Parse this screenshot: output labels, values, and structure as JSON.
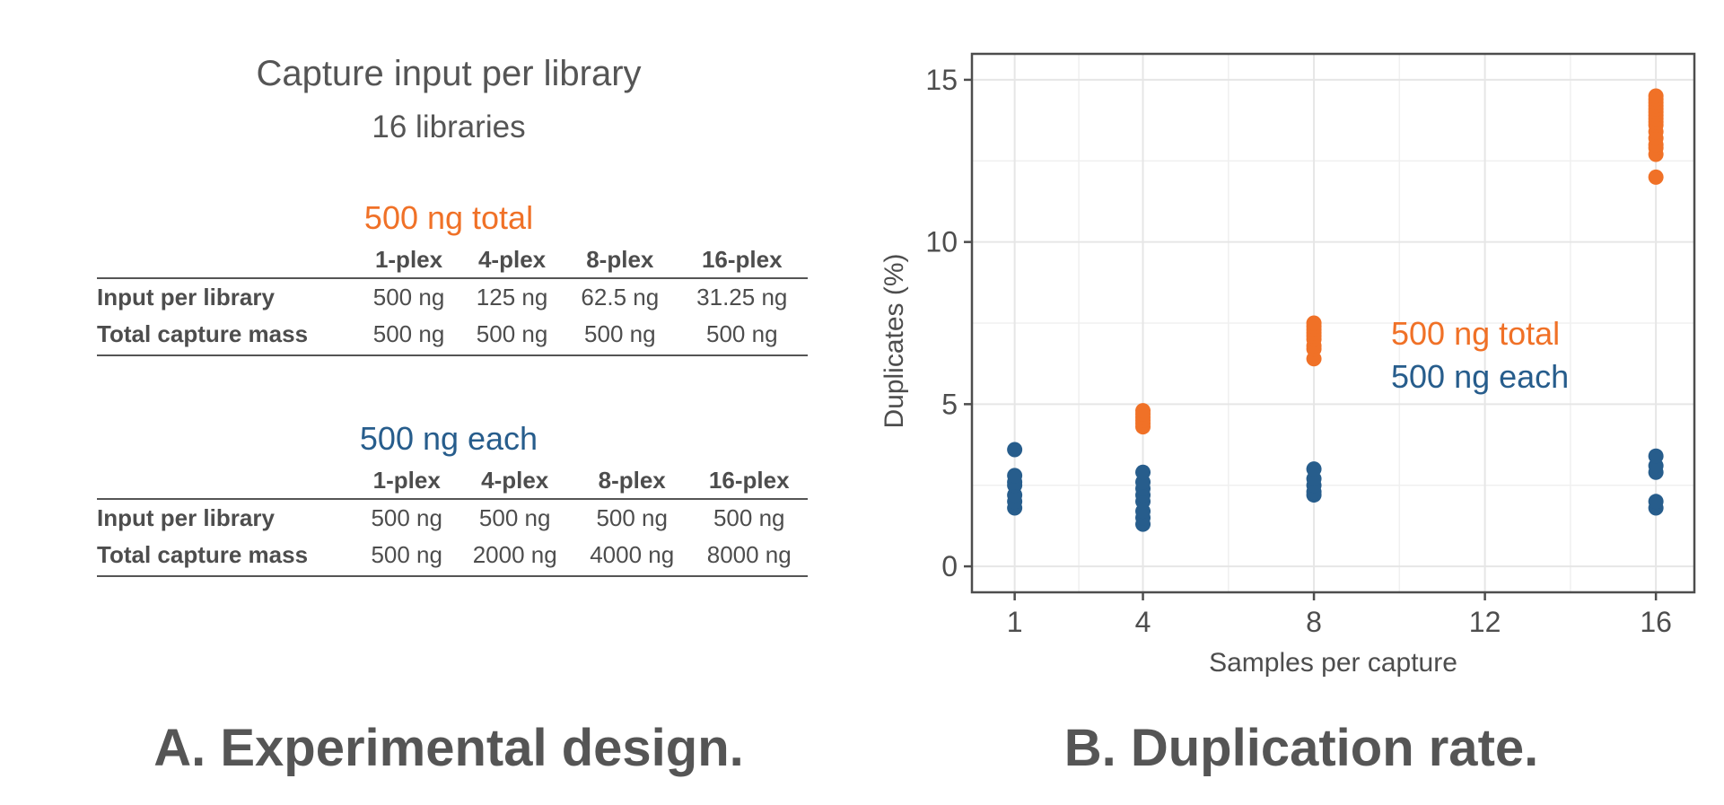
{
  "design": {
    "title": "Capture input per library",
    "subtitle": "16 libraries",
    "groups": [
      {
        "title": "500 ng total",
        "color": "#f07127",
        "columns": [
          "1-plex",
          "4-plex",
          "8-plex",
          "16-plex"
        ],
        "rows": [
          {
            "label": "Input per library",
            "values": [
              "500 ng",
              "125 ng",
              "62.5 ng",
              "31.25 ng"
            ]
          },
          {
            "label": "Total capture mass",
            "values": [
              "500 ng",
              "500 ng",
              "500 ng",
              "500 ng"
            ]
          }
        ]
      },
      {
        "title": "500 ng each",
        "color": "#275d8c",
        "columns": [
          "1-plex",
          "4-plex",
          "8-plex",
          "16-plex"
        ],
        "rows": [
          {
            "label": "Input per library",
            "values": [
              "500 ng",
              "500 ng",
              "500 ng",
              "500 ng"
            ]
          },
          {
            "label": "Total capture mass",
            "values": [
              "500 ng",
              "2000 ng",
              "4000 ng",
              "8000 ng"
            ]
          }
        ]
      }
    ]
  },
  "captions": {
    "a": "A. Experimental design.",
    "b": "B. Duplication rate."
  },
  "chart_data": {
    "type": "scatter",
    "xlabel": "Samples per capture",
    "ylabel": "Duplicates (%)",
    "xlim": [
      0,
      16.9
    ],
    "ylim": [
      -0.8,
      15.8
    ],
    "xticks": [
      1,
      4,
      8,
      12,
      16
    ],
    "yticks": [
      0,
      5,
      10,
      15
    ],
    "grid": true,
    "legend_placement": "inside-right",
    "series": [
      {
        "name": "500 ng total",
        "color": "#f07127",
        "points": [
          [
            4,
            4.3
          ],
          [
            4,
            4.4
          ],
          [
            4,
            4.5
          ],
          [
            4,
            4.6
          ],
          [
            4,
            4.7
          ],
          [
            4,
            4.8
          ],
          [
            8,
            6.4
          ],
          [
            8,
            6.7
          ],
          [
            8,
            6.8
          ],
          [
            8,
            7.0
          ],
          [
            8,
            7.1
          ],
          [
            8,
            7.2
          ],
          [
            8,
            7.3
          ],
          [
            8,
            7.4
          ],
          [
            8,
            7.5
          ],
          [
            16,
            12.0
          ],
          [
            16,
            12.7
          ],
          [
            16,
            12.9
          ],
          [
            16,
            13.0
          ],
          [
            16,
            13.2
          ],
          [
            16,
            13.4
          ],
          [
            16,
            13.6
          ],
          [
            16,
            13.7
          ],
          [
            16,
            13.8
          ],
          [
            16,
            13.9
          ],
          [
            16,
            14.0
          ],
          [
            16,
            14.1
          ],
          [
            16,
            14.2
          ],
          [
            16,
            14.3
          ],
          [
            16,
            14.4
          ],
          [
            16,
            14.5
          ]
        ]
      },
      {
        "name": "500 ng each",
        "color": "#275d8c",
        "points": [
          [
            1,
            1.8
          ],
          [
            1,
            2.0
          ],
          [
            1,
            2.2
          ],
          [
            1,
            2.5
          ],
          [
            1,
            2.6
          ],
          [
            1,
            2.8
          ],
          [
            1,
            3.6
          ],
          [
            4,
            1.3
          ],
          [
            4,
            1.5
          ],
          [
            4,
            1.7
          ],
          [
            4,
            2.0
          ],
          [
            4,
            2.2
          ],
          [
            4,
            2.4
          ],
          [
            4,
            2.6
          ],
          [
            4,
            2.9
          ],
          [
            8,
            2.2
          ],
          [
            8,
            2.3
          ],
          [
            8,
            2.5
          ],
          [
            8,
            2.7
          ],
          [
            8,
            3.0
          ],
          [
            16,
            1.8
          ],
          [
            16,
            2.0
          ],
          [
            16,
            2.9
          ],
          [
            16,
            3.1
          ],
          [
            16,
            3.4
          ]
        ]
      }
    ]
  }
}
